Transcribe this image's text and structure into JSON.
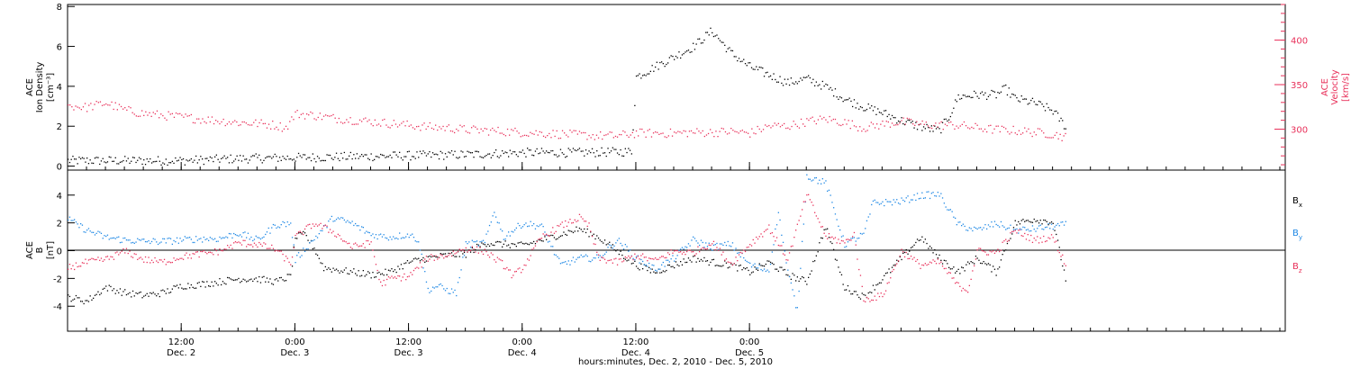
{
  "colors": {
    "black": "#000000",
    "pink": "#e8305a",
    "blue": "#1e88e5"
  },
  "chart_data": [
    {
      "type": "scatter",
      "ylabel_left": [
        "ACE",
        "Ion Density",
        "[cm⁻³]"
      ],
      "ylabel_right": [
        "ACE",
        "Velocity",
        "[km/s]"
      ],
      "ylim_left": [
        -0.2,
        8.1
      ],
      "ylim_right": [
        254,
        440
      ],
      "yticks_left": [
        "0",
        "2",
        "4",
        "6",
        "8"
      ],
      "yticks_right": [
        "300",
        "350",
        "400"
      ],
      "series": [
        {
          "color": "black",
          "axis": "left",
          "points": [
            [
              0,
              0.3
            ],
            [
              6,
              0.3
            ],
            [
              12,
              0.3
            ],
            [
              18,
              0.4
            ],
            [
              24,
              0.45
            ],
            [
              30,
              0.5
            ],
            [
              36,
              0.55
            ],
            [
              42,
              0.6
            ],
            [
              48,
              0.7
            ],
            [
              54,
              0.7
            ],
            [
              59.5,
              0.75
            ],
            [
              60,
              4.5
            ],
            [
              62,
              5.0
            ],
            [
              64,
              5.5
            ],
            [
              66,
              6.0
            ],
            [
              68,
              6.8
            ],
            [
              70,
              5.7
            ],
            [
              72,
              5.0
            ],
            [
              74,
              4.6
            ],
            [
              76,
              4.2
            ],
            [
              78,
              4.4
            ],
            [
              80,
              4.0
            ],
            [
              82,
              3.4
            ],
            [
              84,
              3.0
            ],
            [
              86,
              2.7
            ],
            [
              88,
              2.3
            ],
            [
              90,
              2.0
            ],
            [
              92,
              1.8
            ],
            [
              93,
              2.5
            ],
            [
              94,
              3.5
            ],
            [
              96,
              3.6
            ],
            [
              98,
              3.6
            ],
            [
              99,
              3.9
            ],
            [
              100,
              3.4
            ],
            [
              102,
              3.2
            ],
            [
              104,
              2.8
            ],
            [
              105.5,
              1.9
            ]
          ]
        },
        {
          "color": "pink",
          "axis": "right",
          "points": [
            [
              0,
              327
            ],
            [
              2,
              325
            ],
            [
              4,
              330
            ],
            [
              6,
              322
            ],
            [
              8,
              318
            ],
            [
              10,
              316
            ],
            [
              12,
              314
            ],
            [
              14,
              312
            ],
            [
              16,
              310
            ],
            [
              18,
              308
            ],
            [
              20,
              307
            ],
            [
              22,
              305
            ],
            [
              23,
              302
            ],
            [
              24,
              318
            ],
            [
              26,
              316
            ],
            [
              28,
              313
            ],
            [
              30,
              311
            ],
            [
              32,
              309
            ],
            [
              34,
              307
            ],
            [
              36,
              305
            ],
            [
              38,
              303
            ],
            [
              40,
              302
            ],
            [
              42,
              300
            ],
            [
              44,
              299
            ],
            [
              46,
              298
            ],
            [
              48,
              297
            ],
            [
              50,
              296
            ],
            [
              52,
              295
            ],
            [
              54,
              294
            ],
            [
              56,
              293
            ],
            [
              58,
              293
            ],
            [
              60,
              296
            ],
            [
              62,
              296
            ],
            [
              64,
              296
            ],
            [
              66,
              297
            ],
            [
              68,
              297
            ],
            [
              70,
              298
            ],
            [
              72,
              296
            ],
            [
              74,
              304
            ],
            [
              76,
              304
            ],
            [
              78,
              309
            ],
            [
              80,
              312
            ],
            [
              82,
              308
            ],
            [
              84,
              302
            ],
            [
              86,
              306
            ],
            [
              88,
              309
            ],
            [
              90,
              306
            ],
            [
              92,
              305
            ],
            [
              94,
              305
            ],
            [
              96,
              302
            ],
            [
              98,
              300
            ],
            [
              100,
              299
            ],
            [
              102,
              297
            ],
            [
              104,
              295
            ],
            [
              105.5,
              291
            ]
          ]
        }
      ]
    },
    {
      "type": "scatter",
      "ylabel_left": [
        "ACE",
        "B",
        "[nT]"
      ],
      "ylim": [
        -5.8,
        5.8
      ],
      "yticks": [
        "-4",
        "-2",
        "0",
        "2",
        "4"
      ],
      "series": [
        {
          "name": "Bx",
          "color": "black",
          "points": [
            [
              0,
              -3.3
            ],
            [
              2,
              -3.6
            ],
            [
              4,
              -2.6
            ],
            [
              6,
              -3.0
            ],
            [
              8,
              -3.2
            ],
            [
              10,
              -3.0
            ],
            [
              12,
              -2.5
            ],
            [
              14,
              -2.4
            ],
            [
              16,
              -2.2
            ],
            [
              18,
              -2.0
            ],
            [
              20,
              -2.0
            ],
            [
              22,
              -2.2
            ],
            [
              23.5,
              -1.8
            ],
            [
              24,
              1.0
            ],
            [
              25,
              1.2
            ],
            [
              26,
              0.2
            ],
            [
              27,
              -1.2
            ],
            [
              28,
              -1.3
            ],
            [
              30,
              -1.5
            ],
            [
              32,
              -1.7
            ],
            [
              34,
              -1.5
            ],
            [
              36,
              -0.8
            ],
            [
              38,
              -0.5
            ],
            [
              40,
              -0.3
            ],
            [
              42,
              -0.2
            ],
            [
              44,
              0.6
            ],
            [
              46,
              0.5
            ],
            [
              48,
              0.4
            ],
            [
              50,
              0.8
            ],
            [
              52,
              1.2
            ],
            [
              54,
              1.6
            ],
            [
              56,
              1.0
            ],
            [
              58,
              0.0
            ],
            [
              60,
              -1.0
            ],
            [
              62,
              -1.5
            ],
            [
              64,
              -1.0
            ],
            [
              66,
              -0.5
            ],
            [
              68,
              -0.8
            ],
            [
              70,
              -1.0
            ],
            [
              72,
              -1.5
            ],
            [
              74,
              -0.8
            ],
            [
              76,
              -1.7
            ],
            [
              78,
              -2.2
            ],
            [
              80,
              1.8
            ],
            [
              82,
              -2.6
            ],
            [
              84,
              -3.3
            ],
            [
              86,
              -2.0
            ],
            [
              88,
              -0.5
            ],
            [
              90,
              1.0
            ],
            [
              92,
              -0.5
            ],
            [
              94,
              -1.5
            ],
            [
              96,
              -0.5
            ],
            [
              98,
              -1.5
            ],
            [
              100,
              2.0
            ],
            [
              102,
              2.3
            ],
            [
              104,
              2.1
            ],
            [
              105.5,
              -2.5
            ]
          ]
        },
        {
          "name": "By",
          "color": "blue",
          "points": [
            [
              0,
              2.3
            ],
            [
              2,
              1.5
            ],
            [
              4,
              1.0
            ],
            [
              6,
              0.8
            ],
            [
              8,
              0.7
            ],
            [
              10,
              0.7
            ],
            [
              12,
              0.8
            ],
            [
              14,
              0.9
            ],
            [
              16,
              0.9
            ],
            [
              18,
              1.3
            ],
            [
              20,
              0.8
            ],
            [
              22,
              1.9
            ],
            [
              23.5,
              2.0
            ],
            [
              24,
              -0.6
            ],
            [
              26,
              0.9
            ],
            [
              28,
              2.4
            ],
            [
              30,
              2.0
            ],
            [
              32,
              1.2
            ],
            [
              34,
              1.0
            ],
            [
              36,
              1.2
            ],
            [
              37,
              0.8
            ],
            [
              38,
              -2.8
            ],
            [
              39,
              -2.5
            ],
            [
              40,
              -2.8
            ],
            [
              41,
              -3.0
            ],
            [
              42,
              0.5
            ],
            [
              44,
              0.6
            ],
            [
              45,
              2.9
            ],
            [
              46,
              1.0
            ],
            [
              48,
              2.0
            ],
            [
              50,
              1.8
            ],
            [
              52,
              -1.0
            ],
            [
              54,
              -0.5
            ],
            [
              56,
              -0.5
            ],
            [
              58,
              0.8
            ],
            [
              60,
              -0.5
            ],
            [
              62,
              -1.3
            ],
            [
              64,
              -0.5
            ],
            [
              66,
              0.8
            ],
            [
              68,
              0.3
            ],
            [
              70,
              0.5
            ],
            [
              72,
              -1.0
            ],
            [
              74,
              -1.4
            ],
            [
              75,
              2.8
            ],
            [
              76,
              -1.5
            ],
            [
              77,
              -4.3
            ],
            [
              78,
              5.4
            ],
            [
              80,
              4.9
            ],
            [
              82,
              0.5
            ],
            [
              84,
              1.2
            ],
            [
              85,
              3.5
            ],
            [
              86,
              3.5
            ],
            [
              88,
              3.6
            ],
            [
              90,
              4.0
            ],
            [
              92,
              4.1
            ],
            [
              94,
              1.9
            ],
            [
              96,
              1.5
            ],
            [
              98,
              2.0
            ],
            [
              100,
              1.5
            ],
            [
              102,
              1.6
            ],
            [
              104,
              1.8
            ],
            [
              105.5,
              1.9
            ]
          ]
        },
        {
          "name": "Bz",
          "color": "pink",
          "points": [
            [
              0,
              -1.2
            ],
            [
              2,
              -0.8
            ],
            [
              4,
              -0.6
            ],
            [
              6,
              0.0
            ],
            [
              8,
              -0.6
            ],
            [
              10,
              -0.8
            ],
            [
              12,
              -0.4
            ],
            [
              14,
              -0.2
            ],
            [
              16,
              0.0
            ],
            [
              18,
              0.6
            ],
            [
              20,
              0.5
            ],
            [
              22,
              0.1
            ],
            [
              23.5,
              -0.9
            ],
            [
              24,
              1.0
            ],
            [
              26,
              2.0
            ],
            [
              28,
              1.4
            ],
            [
              30,
              0.3
            ],
            [
              32,
              0.6
            ],
            [
              33,
              -2.4
            ],
            [
              34,
              -2.0
            ],
            [
              36,
              -1.8
            ],
            [
              38,
              -0.5
            ],
            [
              40,
              -0.3
            ],
            [
              42,
              0.2
            ],
            [
              44,
              0.0
            ],
            [
              46,
              -1.0
            ],
            [
              47,
              -1.8
            ],
            [
              48,
              -1.2
            ],
            [
              50,
              1.0
            ],
            [
              52,
              1.8
            ],
            [
              54,
              2.4
            ],
            [
              55,
              1.8
            ],
            [
              56,
              -0.5
            ],
            [
              58,
              -0.8
            ],
            [
              60,
              -0.3
            ],
            [
              62,
              -0.7
            ],
            [
              64,
              0.0
            ],
            [
              66,
              -0.1
            ],
            [
              68,
              0.6
            ],
            [
              70,
              -0.9
            ],
            [
              72,
              0.5
            ],
            [
              74,
              1.7
            ],
            [
              76,
              -0.6
            ],
            [
              78,
              4.1
            ],
            [
              80,
              1.1
            ],
            [
              82,
              0.6
            ],
            [
              83,
              1.2
            ],
            [
              84,
              -3.5
            ],
            [
              86,
              -3.2
            ],
            [
              88,
              0.0
            ],
            [
              90,
              -1.0
            ],
            [
              92,
              -0.8
            ],
            [
              94,
              -2.5
            ],
            [
              95,
              -2.8
            ],
            [
              96,
              0.0
            ],
            [
              98,
              -0.1
            ],
            [
              100,
              1.5
            ],
            [
              102,
              0.8
            ],
            [
              104,
              1.0
            ],
            [
              105.5,
              -1.2
            ]
          ]
        }
      ],
      "legend": [
        "B",
        "B",
        "B"
      ],
      "legend_sub": [
        "x",
        "y",
        "z"
      ]
    }
  ],
  "xaxis": {
    "ticks": [
      {
        "time": "12:00",
        "date": "Dec. 2",
        "h": 12
      },
      {
        "time": "0:00",
        "date": "Dec. 3",
        "h": 24
      },
      {
        "time": "12:00",
        "date": "Dec. 3",
        "h": 36
      },
      {
        "time": "0:00",
        "date": "Dec. 4",
        "h": 48
      },
      {
        "time": "12:00",
        "date": "Dec. 4",
        "h": 60
      },
      {
        "time": "0:00",
        "date": "Dec. 5",
        "h": 72
      }
    ],
    "xlabel": "hours:minutes, Dec.  2, 2010 - Dec.  5, 2010"
  }
}
